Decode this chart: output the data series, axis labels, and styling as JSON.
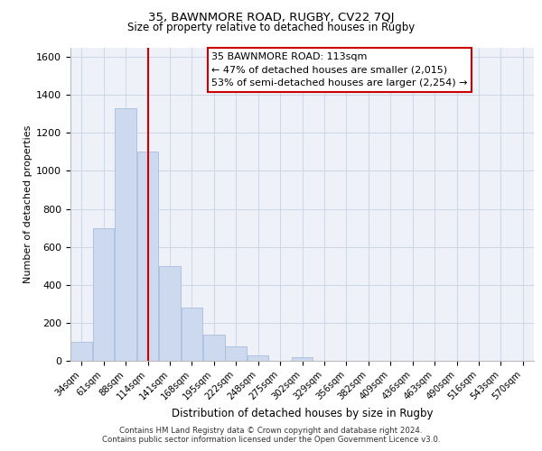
{
  "title1": "35, BAWNMORE ROAD, RUGBY, CV22 7QJ",
  "title2": "Size of property relative to detached houses in Rugby",
  "xlabel": "Distribution of detached houses by size in Rugby",
  "ylabel": "Number of detached properties",
  "bin_labels": [
    "34sqm",
    "61sqm",
    "88sqm",
    "114sqm",
    "141sqm",
    "168sqm",
    "195sqm",
    "222sqm",
    "248sqm",
    "275sqm",
    "302sqm",
    "329sqm",
    "356sqm",
    "382sqm",
    "409sqm",
    "436sqm",
    "463sqm",
    "490sqm",
    "516sqm",
    "543sqm",
    "570sqm"
  ],
  "bar_heights": [
    100,
    700,
    1330,
    1100,
    500,
    280,
    140,
    75,
    30,
    0,
    20,
    0,
    0,
    0,
    0,
    0,
    0,
    0,
    0,
    0,
    0
  ],
  "bar_color": "#ccd9ee",
  "bar_edge_color": "#a8bedd",
  "vline_color": "#cc0000",
  "ylim": [
    0,
    1650
  ],
  "yticks": [
    0,
    200,
    400,
    600,
    800,
    1000,
    1200,
    1400,
    1600
  ],
  "annotation_line1": "35 BAWNMORE ROAD: 113sqm",
  "annotation_line2": "← 47% of detached houses are smaller (2,015)",
  "annotation_line3": "53% of semi-detached houses are larger (2,254) →",
  "annotation_box_color": "#ffffff",
  "annotation_box_edge": "#cc0000",
  "footer1": "Contains HM Land Registry data © Crown copyright and database right 2024.",
  "footer2": "Contains public sector information licensed under the Open Government Licence v3.0.",
  "grid_color": "#d0d8e8",
  "background_color": "#eef2f8"
}
